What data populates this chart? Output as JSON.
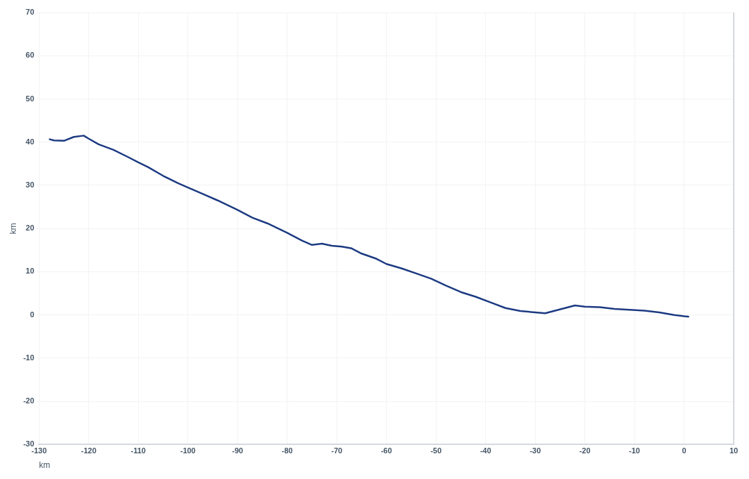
{
  "chart_data": {
    "type": "line",
    "xlabel": "km",
    "ylabel": "km",
    "xlim": [
      -130,
      10
    ],
    "xticks": [
      -130,
      -120,
      -110,
      -100,
      -90,
      -80,
      -70,
      -60,
      -50,
      -40,
      -30,
      -20,
      -10,
      0,
      10
    ],
    "ylim": [
      -30,
      70
    ],
    "yticks": [
      -30,
      -20,
      -10,
      0,
      10,
      20,
      30,
      40,
      50,
      60,
      70
    ],
    "grid": true,
    "legend": false,
    "marker": "none",
    "line_style": "solid",
    "series": [
      {
        "color": "#1c3a82",
        "x": [
          -128,
          -127,
          -125,
          -123,
          -121,
          -120,
          -118,
          -115,
          -112,
          -110,
          -108,
          -105,
          -102,
          -100,
          -97,
          -94,
          -90,
          -87,
          -84,
          -80,
          -77,
          -75,
          -73,
          -71,
          -69,
          -67,
          -65,
          -62,
          -60,
          -57,
          -54,
          -51,
          -48,
          -45,
          -42,
          -39,
          -36,
          -33,
          -30,
          -28,
          -26,
          -24,
          -22,
          -20,
          -17,
          -14,
          -11,
          -8,
          -5,
          -2,
          0,
          1
        ],
        "values": [
          40.7,
          40.4,
          40.3,
          41.2,
          41.5,
          40.8,
          39.5,
          38.2,
          36.5,
          35.3,
          34.2,
          32.2,
          30.5,
          29.5,
          28,
          26.5,
          24.3,
          22.5,
          21.2,
          19,
          17.2,
          16.2,
          16.5,
          16,
          15.8,
          15.4,
          14.2,
          13,
          11.8,
          10.8,
          9.6,
          8.4,
          6.8,
          5.3,
          4.2,
          2.9,
          1.6,
          0.9,
          0.6,
          0.4,
          1,
          1.6,
          2.2,
          1.9,
          1.8,
          1.4,
          1.2,
          1,
          0.6,
          0,
          -0.3,
          -0.4
        ]
      }
    ]
  }
}
